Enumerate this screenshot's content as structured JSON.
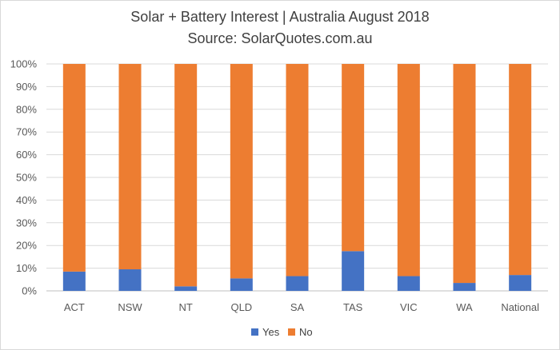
{
  "chart_data": {
    "type": "bar",
    "stacked": true,
    "title": "Solar + Battery Interest | Australia August 2018",
    "subtitle": "Source: SolarQuotes.com.au",
    "categories": [
      "ACT",
      "NSW",
      "NT",
      "QLD",
      "SA",
      "TAS",
      "VIC",
      "WA",
      "National"
    ],
    "series": [
      {
        "name": "Yes",
        "color": "#4472c4",
        "values": [
          8.5,
          9.5,
          2.0,
          5.5,
          6.5,
          17.5,
          6.5,
          3.5,
          7.0
        ]
      },
      {
        "name": "No",
        "color": "#ed7d31",
        "values": [
          91.5,
          90.5,
          98.0,
          94.5,
          93.5,
          82.5,
          93.5,
          96.5,
          93.0
        ]
      }
    ],
    "yticks": [
      "0%",
      "10%",
      "20%",
      "30%",
      "40%",
      "50%",
      "60%",
      "70%",
      "80%",
      "90%",
      "100%"
    ],
    "ylim": [
      0,
      100
    ],
    "grid": true,
    "legend_position": "bottom"
  }
}
